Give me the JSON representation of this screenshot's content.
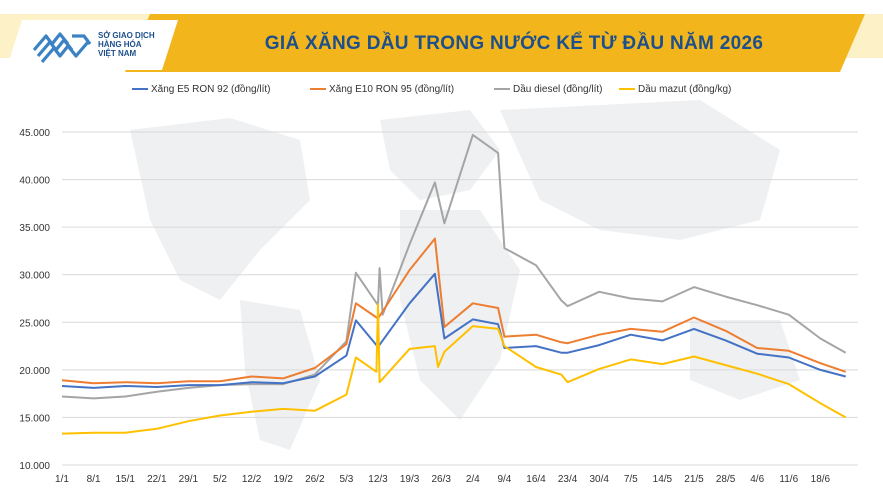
{
  "logo": {
    "line1": "SỞ GIAO DỊCH",
    "line2": "HÀNG HÓA",
    "line3": "VIỆT NAM"
  },
  "colors": {
    "banner": "#f2b61c",
    "banner_bg": "#fdf1c8",
    "title": "#1c4f8c",
    "logo_blue": "#3b82c4",
    "grid": "#d9d9d9"
  },
  "chart_data": {
    "type": "line",
    "title": "GIÁ XĂNG DẦU TRONG NƯỚC KỂ TỪ ĐẦU NĂM 2026",
    "xlabel": "",
    "ylabel": "",
    "ylim": [
      10000,
      45000
    ],
    "yticks": [
      10000,
      15000,
      20000,
      25000,
      30000,
      35000,
      40000,
      45000
    ],
    "ytick_labels": [
      "10.000",
      "15.000",
      "20.000",
      "25.000",
      "30.000",
      "35.000",
      "40.000",
      "45.000"
    ],
    "grid": true,
    "legend_position": "top",
    "x_tick_labels": [
      "1/1",
      "8/1",
      "15/1",
      "22/1",
      "29/1",
      "5/2",
      "12/2",
      "19/2",
      "26/2",
      "5/3",
      "12/3",
      "19/3",
      "26/3",
      "2/4",
      "9/4",
      "16/4",
      "23/4",
      "30/4",
      "7/5",
      "14/5",
      "21/5",
      "28/5",
      "4/6",
      "11/6",
      "18/6"
    ],
    "series": [
      {
        "name": "Xăng E5 RON 92 (đồng/lít)",
        "color": "#4472c4",
        "points": [
          [
            0,
            18300
          ],
          [
            1,
            18100
          ],
          [
            2,
            18300
          ],
          [
            3,
            18200
          ],
          [
            4,
            18400
          ],
          [
            5,
            18400
          ],
          [
            6,
            18700
          ],
          [
            7,
            18600
          ],
          [
            8,
            19300
          ],
          [
            9,
            21500
          ],
          [
            9.3,
            25200
          ],
          [
            10,
            22400
          ],
          [
            11,
            27000
          ],
          [
            11.8,
            30100
          ],
          [
            12.1,
            23300
          ],
          [
            13,
            25300
          ],
          [
            13.8,
            24800
          ],
          [
            14,
            22300
          ],
          [
            15,
            22500
          ],
          [
            15.8,
            21800
          ],
          [
            16,
            21800
          ],
          [
            17,
            22600
          ],
          [
            18,
            23700
          ],
          [
            19,
            23100
          ],
          [
            20,
            24300
          ],
          [
            21,
            23100
          ],
          [
            22,
            21700
          ],
          [
            23,
            21300
          ],
          [
            24,
            20000
          ],
          [
            24.8,
            19300
          ]
        ]
      },
      {
        "name": "Xăng E10 RON 95 (đồng/lít)",
        "color": "#ed7d31",
        "points": [
          [
            0,
            18900
          ],
          [
            1,
            18600
          ],
          [
            2,
            18700
          ],
          [
            3,
            18600
          ],
          [
            4,
            18800
          ],
          [
            5,
            18800
          ],
          [
            6,
            19300
          ],
          [
            7,
            19100
          ],
          [
            8,
            20200
          ],
          [
            9,
            22700
          ],
          [
            9.3,
            27000
          ],
          [
            10,
            25400
          ],
          [
            11,
            30500
          ],
          [
            11.8,
            33800
          ],
          [
            12.1,
            24500
          ],
          [
            13,
            27000
          ],
          [
            13.8,
            26500
          ],
          [
            14,
            23500
          ],
          [
            15,
            23700
          ],
          [
            15.8,
            22900
          ],
          [
            16,
            22800
          ],
          [
            17,
            23700
          ],
          [
            18,
            24300
          ],
          [
            19,
            24000
          ],
          [
            20,
            25500
          ],
          [
            21,
            24100
          ],
          [
            22,
            22300
          ],
          [
            23,
            22000
          ],
          [
            24,
            20700
          ],
          [
            24.8,
            19800
          ]
        ]
      },
      {
        "name": "Dầu diesel (đồng/lít)",
        "color": "#a5a5a5",
        "points": [
          [
            0,
            17200
          ],
          [
            1,
            17000
          ],
          [
            2,
            17200
          ],
          [
            3,
            17700
          ],
          [
            4,
            18100
          ],
          [
            5,
            18400
          ],
          [
            6,
            18500
          ],
          [
            7,
            18500
          ],
          [
            8,
            19500
          ],
          [
            9,
            23000
          ],
          [
            9.3,
            30200
          ],
          [
            10,
            26800
          ],
          [
            10.05,
            30700
          ],
          [
            10.15,
            25800
          ],
          [
            11,
            33200
          ],
          [
            11.8,
            39700
          ],
          [
            12.1,
            35400
          ],
          [
            13,
            44700
          ],
          [
            13.8,
            42800
          ],
          [
            14,
            32800
          ],
          [
            15,
            31000
          ],
          [
            15.8,
            27300
          ],
          [
            16,
            26700
          ],
          [
            17,
            28200
          ],
          [
            18,
            27500
          ],
          [
            19,
            27200
          ],
          [
            20,
            28700
          ],
          [
            21,
            27700
          ],
          [
            22,
            26800
          ],
          [
            23,
            25800
          ],
          [
            24,
            23300
          ],
          [
            24.8,
            21800
          ]
        ]
      },
      {
        "name": "Dầu mazut (đồng/kg)",
        "color": "#ffc000",
        "points": [
          [
            0,
            13300
          ],
          [
            1,
            13400
          ],
          [
            2,
            13400
          ],
          [
            3,
            13800
          ],
          [
            4,
            14600
          ],
          [
            5,
            15200
          ],
          [
            6,
            15600
          ],
          [
            7,
            15900
          ],
          [
            8,
            15700
          ],
          [
            9,
            17400
          ],
          [
            9.3,
            21300
          ],
          [
            9.95,
            19800
          ],
          [
            10,
            26900
          ],
          [
            10.05,
            18700
          ],
          [
            11,
            22200
          ],
          [
            11.8,
            22500
          ],
          [
            11.9,
            20300
          ],
          [
            12.1,
            21900
          ],
          [
            13,
            24600
          ],
          [
            13.8,
            24300
          ],
          [
            14,
            22500
          ],
          [
            15,
            20300
          ],
          [
            15.8,
            19500
          ],
          [
            16,
            18700
          ],
          [
            17,
            20100
          ],
          [
            18,
            21100
          ],
          [
            19,
            20600
          ],
          [
            20,
            21400
          ],
          [
            21,
            20500
          ],
          [
            22,
            19600
          ],
          [
            23,
            18500
          ],
          [
            24,
            16500
          ],
          [
            24.8,
            15000
          ]
        ]
      }
    ]
  }
}
